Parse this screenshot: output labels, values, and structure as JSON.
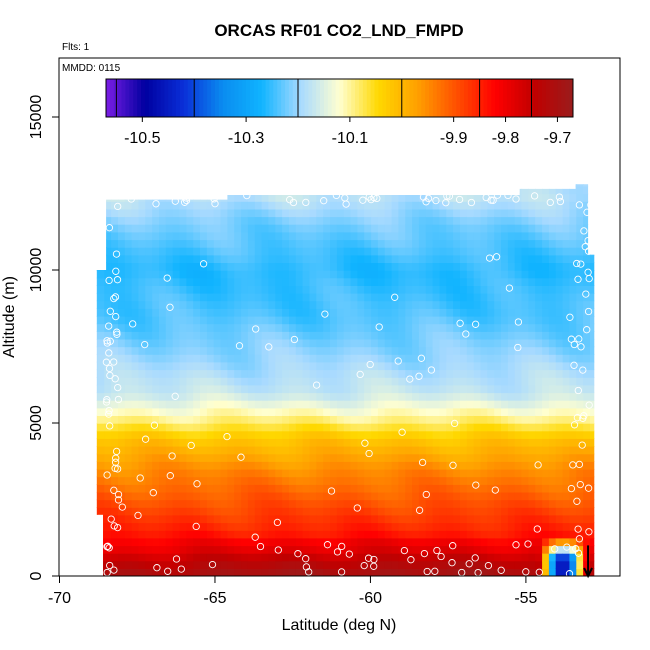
{
  "chart_data": {
    "type": "heatmap",
    "title": "ORCAS RF01 CO2_LND_FMPD",
    "flights_label": "Flts: 1",
    "date_label": "MMDD: 0115",
    "xlabel": "Latitude (deg N)",
    "ylabel": "Altitude (m)",
    "xlim": [
      -70,
      -52
    ],
    "ylim": [
      0,
      16500
    ],
    "x_ticks": [
      -70,
      -65,
      -60,
      -55
    ],
    "y_ticks": [
      0,
      5000,
      10000,
      15000
    ],
    "x_tick_labels": [
      "-70",
      "-65",
      "-60",
      "-55"
    ],
    "y_tick_labels": [
      "0",
      "5000",
      "10000",
      "15000"
    ],
    "colorbar": {
      "range": [
        -10.57,
        -9.67
      ],
      "ticks": [
        -10.5,
        -10.3,
        -10.1,
        -9.9,
        -9.8,
        -9.7
      ],
      "tick_labels": [
        "-10.5",
        "-10.3",
        "-10.1",
        "-9.9",
        "-9.8",
        "-9.7"
      ],
      "colors": [
        "#7b1de6",
        "#0000a0",
        "#0a2fd8",
        "#0a8cf0",
        "#10b4ff",
        "#a8daff",
        "#ffffd0",
        "#ffd800",
        "#ffa000",
        "#ff5000",
        "#ff0000",
        "#c00000",
        "#9a1c1c"
      ]
    },
    "field_lat_range": [
      -68.6,
      -52.8
    ],
    "field_alt_range": [
      0,
      12400
    ],
    "field_profile": {
      "altitudes": [
        0,
        500,
        900,
        1500,
        2500,
        3500,
        4500,
        5200,
        6000,
        7000,
        8500,
        10000,
        11500,
        12400
      ],
      "values": [
        -9.7,
        -9.75,
        -9.8,
        -9.85,
        -9.9,
        -9.95,
        -10.02,
        -10.1,
        -10.17,
        -10.2,
        -10.24,
        -10.26,
        -10.22,
        -10.18
      ]
    },
    "anomaly": {
      "lat_range": [
        -54.6,
        -53.0
      ],
      "alt_range": [
        0,
        1300
      ],
      "min_value": -10.45
    },
    "descent_marker": {
      "lat": -53.0,
      "alt_top": 1000,
      "alt_bottom": 0
    },
    "obs_circle_count": 230
  }
}
